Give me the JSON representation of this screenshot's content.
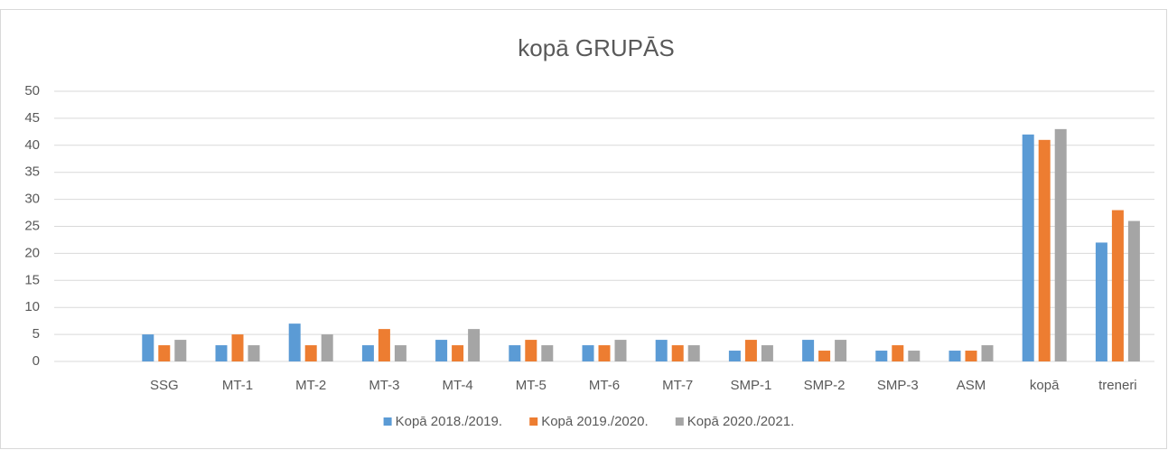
{
  "chart_data": {
    "type": "bar",
    "title": "kopā GRUPĀS",
    "categories": [
      null,
      "SSG",
      "MT-1",
      "MT-2",
      "MT-3",
      "MT-4",
      "MT-5",
      "MT-6",
      "MT-7",
      "SMP-1",
      "SMP-2",
      "SMP-3",
      "ASM",
      "kopā",
      "treneri"
    ],
    "series": [
      {
        "name": "Kopā 2018./2019.",
        "color": "#5b9bd5",
        "values": [
          null,
          5,
          3,
          7,
          3,
          4,
          3,
          3,
          4,
          2,
          4,
          2,
          2,
          42,
          22
        ]
      },
      {
        "name": "Kopā 2019./2020.",
        "color": "#ed7d31",
        "values": [
          null,
          3,
          5,
          3,
          6,
          3,
          4,
          3,
          3,
          4,
          2,
          3,
          2,
          41,
          28
        ]
      },
      {
        "name": "Kopā 2020./2021.",
        "color": "#a5a5a5",
        "values": [
          null,
          4,
          3,
          5,
          3,
          6,
          3,
          4,
          3,
          3,
          4,
          2,
          3,
          43,
          26
        ]
      }
    ],
    "ylim": [
      0,
      50
    ],
    "yticks": [
      0,
      5,
      10,
      15,
      20,
      25,
      30,
      35,
      40,
      45,
      50
    ],
    "grid": true,
    "legend": "bottom"
  }
}
